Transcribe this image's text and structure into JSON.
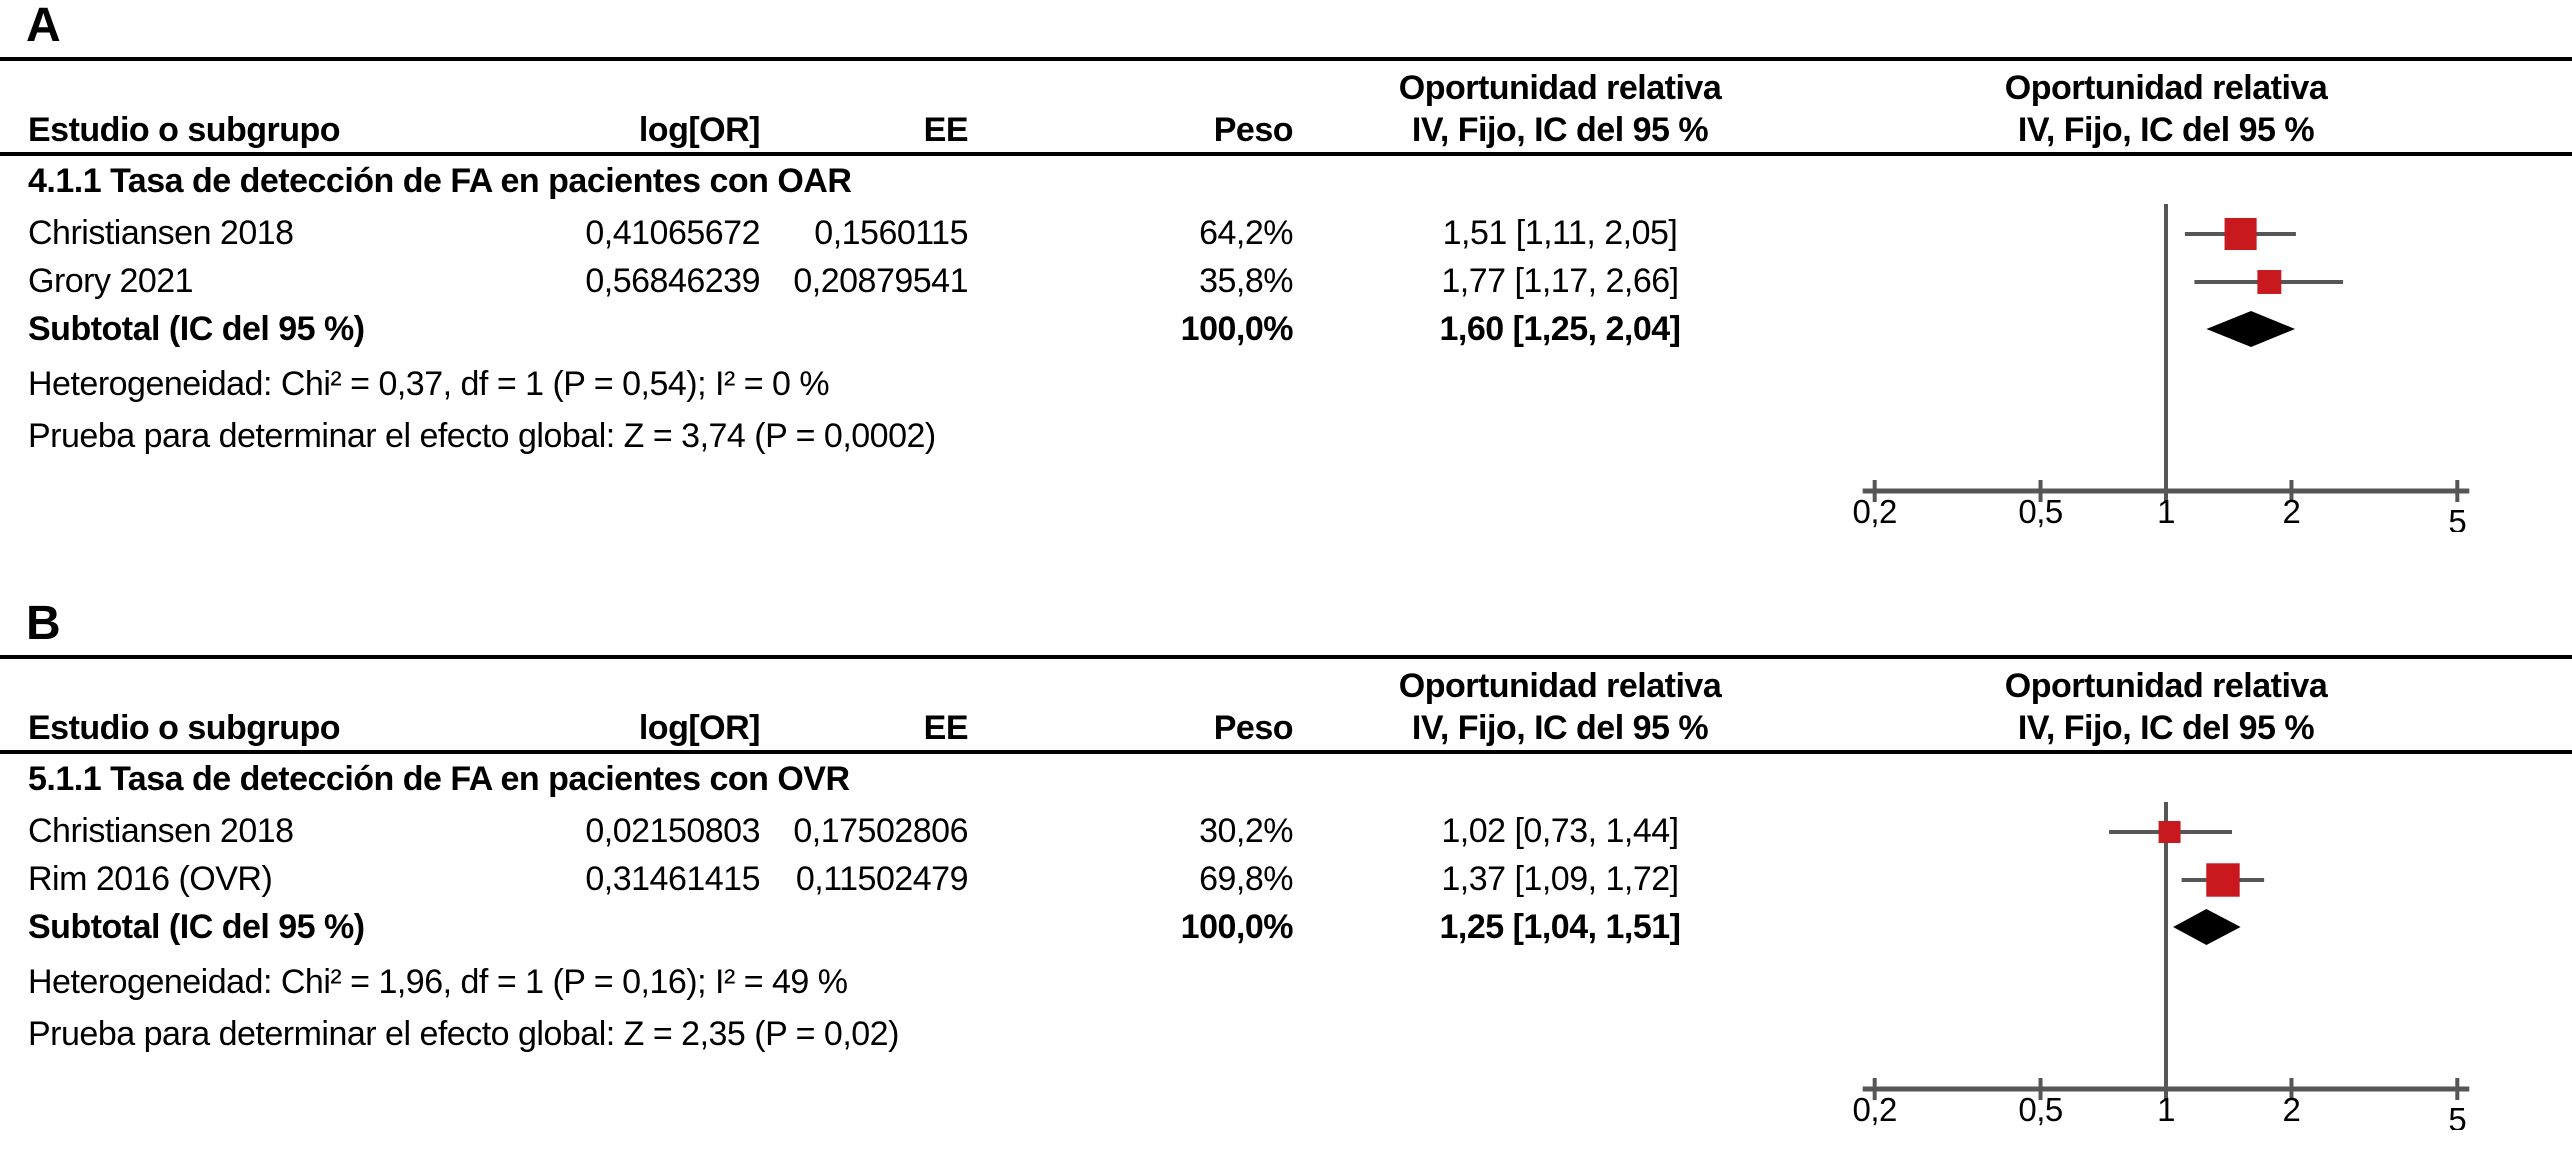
{
  "figure": {
    "colors": {
      "square_red": "#c8191e",
      "line_gray": "#565656",
      "diamond_black": "#000000",
      "text_black": "#000000",
      "rule_black": "#000000"
    },
    "panels": [
      {
        "label": "A",
        "header": {
          "group_title": "Oportunidad relativa",
          "study": "Estudio o subgrupo",
          "logor": "log[OR]",
          "se": "EE",
          "weight": "Peso",
          "ci": "IV, Fijo, IC del 95 %"
        },
        "subgroup_title": "4.1.1 Tasa de detección de FA en pacientes con OAR",
        "rows": [
          {
            "study": "Christiansen 2018",
            "logor": "0,41065672",
            "se": "0,1560115",
            "weight": "64,2%",
            "ci": "1,51 [1,11, 2,05]"
          },
          {
            "study": "Grory 2021",
            "logor": "0,56846239",
            "se": "0,20879541",
            "weight": "35,8%",
            "ci": "1,77 [1,17, 2,66]"
          }
        ],
        "subtotal": {
          "study": "Subtotal (IC del 95 %)",
          "weight": "100,0%",
          "ci": "1,60 [1,25, 2,04]"
        },
        "heterogeneity": "Heterogeneidad: Chi² = 0,37, df = 1 (P = 0,54); I² = 0 %",
        "overall_test": "Prueba para determinar el efecto global: Z = 3,74 (P = 0,0002)"
      },
      {
        "label": "B",
        "header": {
          "group_title": "Oportunidad relativa",
          "study": "Estudio o subgrupo",
          "logor": "log[OR]",
          "se": "EE",
          "weight": "Peso",
          "ci": "IV, Fijo, IC del 95 %"
        },
        "subgroup_title": "5.1.1 Tasa de detección de FA en pacientes con OVR",
        "rows": [
          {
            "study": "Christiansen 2018",
            "logor": "0,02150803",
            "se": "0,17502806",
            "weight": "30,2%",
            "ci": "1,02 [0,73, 1,44]"
          },
          {
            "study": "Rim 2016 (OVR)",
            "logor": "0,31461415",
            "se": "0,11502479",
            "weight": "69,8%",
            "ci": "1,37 [1,09, 1,72]"
          }
        ],
        "subtotal": {
          "study": "Subtotal (IC del 95 %)",
          "weight": "100,0%",
          "ci": "1,25 [1,04, 1,51]"
        },
        "heterogeneity": "Heterogeneidad: Chi² = 1,96, df = 1 (P = 0,16); I² = 49 %",
        "overall_test": "Prueba para determinar el efecto global: Z = 2,35 (P = 0,02)"
      }
    ]
  },
  "chart_data": [
    {
      "type": "forest",
      "panel": "A",
      "effect_measure": "Oportunidad relativa",
      "model": "IV, Fijo, IC del 95 %",
      "subgroup": "4.1.1 Tasa de detección de FA en pacientes con OAR",
      "x_scale": "log",
      "xlim": [
        0.2,
        5
      ],
      "x_ticks": [
        0.2,
        0.5,
        1,
        2,
        5
      ],
      "x_tick_labels": [
        "0,2",
        "0,5",
        "1",
        "2",
        "5"
      ],
      "studies": [
        {
          "name": "Christiansen 2018",
          "log_or": 0.41065672,
          "se": 0.1560115,
          "weight_pct": 64.2,
          "or": 1.51,
          "ci_low": 1.11,
          "ci_high": 2.05
        },
        {
          "name": "Grory 2021",
          "log_or": 0.56846239,
          "se": 0.20879541,
          "weight_pct": 35.8,
          "or": 1.77,
          "ci_low": 1.17,
          "ci_high": 2.66
        }
      ],
      "subtotal": {
        "weight_pct": 100.0,
        "or": 1.6,
        "ci_low": 1.25,
        "ci_high": 2.04
      },
      "heterogeneity": {
        "chi2": 0.37,
        "df": 1,
        "p": 0.54,
        "i2_pct": 0
      },
      "overall_effect": {
        "z": 3.74,
        "p": 0.0002
      }
    },
    {
      "type": "forest",
      "panel": "B",
      "effect_measure": "Oportunidad relativa",
      "model": "IV, Fijo, IC del 95 %",
      "subgroup": "5.1.1 Tasa de detección de FA en pacientes con OVR",
      "x_scale": "log",
      "xlim": [
        0.2,
        5
      ],
      "x_ticks": [
        0.2,
        0.5,
        1,
        2,
        5
      ],
      "x_tick_labels": [
        "0,2",
        "0,5",
        "1",
        "2",
        "5"
      ],
      "studies": [
        {
          "name": "Christiansen 2018",
          "log_or": 0.02150803,
          "se": 0.17502806,
          "weight_pct": 30.2,
          "or": 1.02,
          "ci_low": 0.73,
          "ci_high": 1.44
        },
        {
          "name": "Rim 2016 (OVR)",
          "log_or": 0.31461415,
          "se": 0.11502479,
          "weight_pct": 69.8,
          "or": 1.37,
          "ci_low": 1.09,
          "ci_high": 1.72
        }
      ],
      "subtotal": {
        "weight_pct": 100.0,
        "or": 1.25,
        "ci_low": 1.04,
        "ci_high": 1.51
      },
      "heterogeneity": {
        "chi2": 1.96,
        "df": 1,
        "p": 0.16,
        "i2_pct": 49
      },
      "overall_effect": {
        "z": 2.35,
        "p": 0.02
      }
    }
  ]
}
